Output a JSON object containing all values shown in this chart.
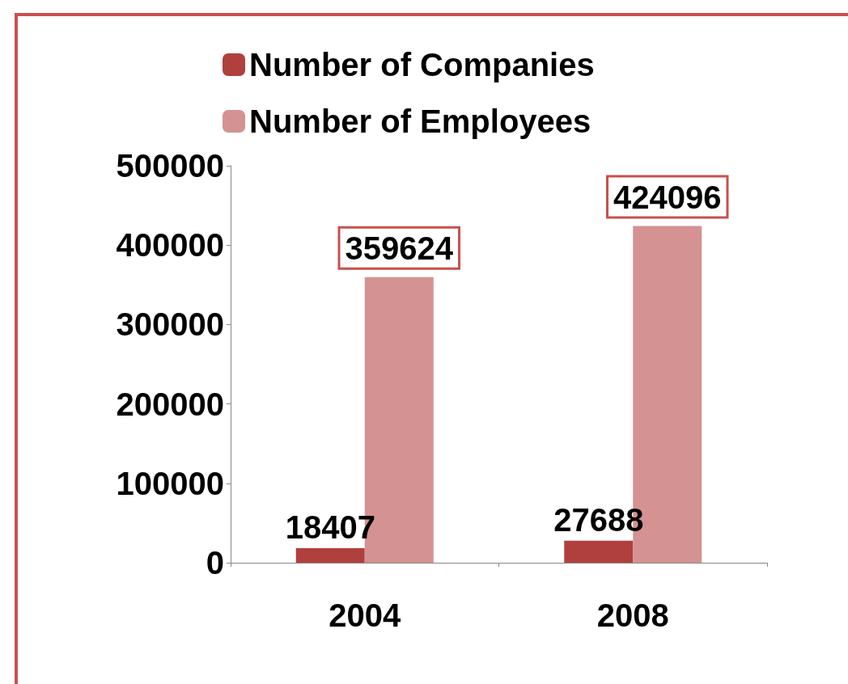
{
  "chart_data": {
    "type": "bar",
    "categories": [
      "2004",
      "2008"
    ],
    "series": [
      {
        "name": "Number of Companies",
        "color": "#b0403e",
        "values": [
          18407,
          27688
        ]
      },
      {
        "name": "Number of Employees",
        "color": "#d49292",
        "values": [
          359624,
          424096
        ]
      }
    ],
    "ylim": [
      0,
      500000
    ],
    "yticks": [
      0,
      100000,
      200000,
      300000,
      400000,
      500000
    ],
    "grid": false,
    "legend": "top",
    "data_labels": true
  }
}
